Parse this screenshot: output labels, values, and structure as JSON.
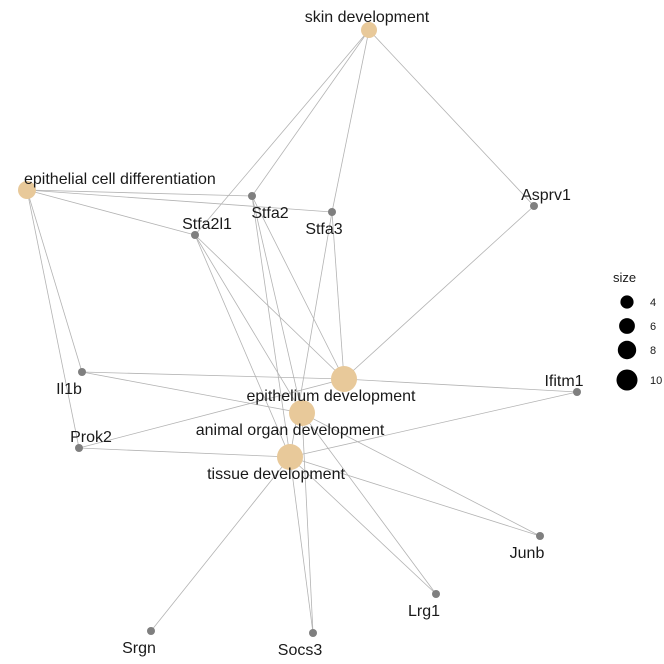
{
  "colors": {
    "category_node": "#e8c99a",
    "gene_node": "#7f7f7f",
    "edge": "#b3b3b3",
    "legend_dot": "#000000"
  },
  "nodes": [
    {
      "id": "skin",
      "label": "skin development",
      "kind": "category",
      "size": 5
    },
    {
      "id": "epicell",
      "label": "epithelial cell differentiation",
      "kind": "category",
      "size": 6
    },
    {
      "id": "epidev",
      "label": "epithelium development",
      "kind": "category",
      "size": 10
    },
    {
      "id": "organ",
      "label": "animal organ development",
      "kind": "category",
      "size": 10
    },
    {
      "id": "tissue",
      "label": "tissue development",
      "kind": "category",
      "size": 10
    },
    {
      "id": "Stfa2",
      "label": "Stfa2",
      "kind": "gene"
    },
    {
      "id": "Stfa2l1",
      "label": "Stfa2l1",
      "kind": "gene"
    },
    {
      "id": "Stfa3",
      "label": "Stfa3",
      "kind": "gene"
    },
    {
      "id": "Asprv1",
      "label": "Asprv1",
      "kind": "gene"
    },
    {
      "id": "Il1b",
      "label": "Il1b",
      "kind": "gene"
    },
    {
      "id": "Ifitm1",
      "label": "Ifitm1",
      "kind": "gene"
    },
    {
      "id": "Prok2",
      "label": "Prok2",
      "kind": "gene"
    },
    {
      "id": "Junb",
      "label": "Junb",
      "kind": "gene"
    },
    {
      "id": "Lrg1",
      "label": "Lrg1",
      "kind": "gene"
    },
    {
      "id": "Srgn",
      "label": "Srgn",
      "kind": "gene"
    },
    {
      "id": "Socs3",
      "label": "Socs3",
      "kind": "gene"
    }
  ],
  "edges": [
    [
      "skin",
      "Stfa2"
    ],
    [
      "skin",
      "Stfa2l1"
    ],
    [
      "skin",
      "Stfa3"
    ],
    [
      "skin",
      "Asprv1"
    ],
    [
      "epicell",
      "Stfa2"
    ],
    [
      "epicell",
      "Stfa2l1"
    ],
    [
      "epicell",
      "Stfa3"
    ],
    [
      "epicell",
      "Il1b"
    ],
    [
      "epicell",
      "Prok2"
    ],
    [
      "epidev",
      "Stfa2"
    ],
    [
      "epidev",
      "Stfa2l1"
    ],
    [
      "epidev",
      "Stfa3"
    ],
    [
      "epidev",
      "Asprv1"
    ],
    [
      "epidev",
      "Il1b"
    ],
    [
      "epidev",
      "Ifitm1"
    ],
    [
      "epidev",
      "Prok2"
    ],
    [
      "organ",
      "Stfa2"
    ],
    [
      "organ",
      "Stfa2l1"
    ],
    [
      "organ",
      "Il1b"
    ],
    [
      "organ",
      "Junb"
    ],
    [
      "organ",
      "Lrg1"
    ],
    [
      "organ",
      "Socs3"
    ],
    [
      "tissue",
      "Stfa2"
    ],
    [
      "tissue",
      "Stfa2l1"
    ],
    [
      "tissue",
      "Stfa3"
    ],
    [
      "tissue",
      "Prok2"
    ],
    [
      "tissue",
      "Ifitm1"
    ],
    [
      "tissue",
      "Junb"
    ],
    [
      "tissue",
      "Lrg1"
    ],
    [
      "tissue",
      "Srgn"
    ],
    [
      "tissue",
      "Socs3"
    ]
  ],
  "legend": {
    "title": "size",
    "items": [
      {
        "label": "4",
        "value": 4
      },
      {
        "label": "6",
        "value": 6
      },
      {
        "label": "8",
        "value": 8
      },
      {
        "label": "10",
        "value": 10
      }
    ]
  }
}
